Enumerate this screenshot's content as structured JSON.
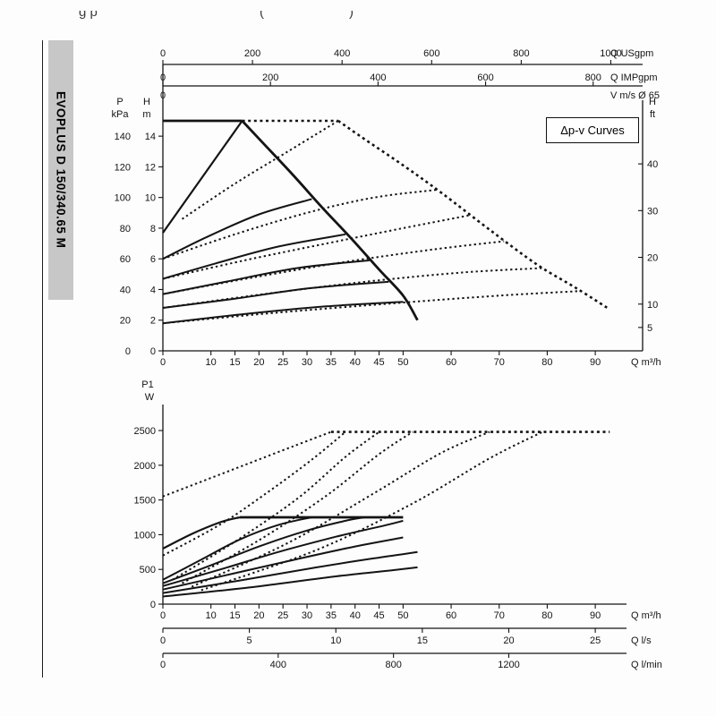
{
  "header_fragments": [
    "g p",
    "(",
    ")"
  ],
  "sidebar_label": "EVOPLUS D 150/340.65 M",
  "dpv_label": "Δp-v Curves",
  "chart_data": [
    {
      "type": "line",
      "name": "head-vs-flow",
      "x_axis": {
        "label": "Q m³/h",
        "ticks": [
          0,
          10,
          15,
          20,
          25,
          30,
          35,
          40,
          45,
          50,
          60,
          70,
          80,
          90
        ],
        "max": 96.5
      },
      "y_axis": {
        "max_m": 15
      },
      "top_axes": [
        {
          "label": "Q USgpm",
          "ticks": [
            0,
            200,
            400,
            600,
            800,
            1000
          ],
          "max": 1035
        },
        {
          "label": "Q IMPgpm",
          "ticks": [
            0,
            200,
            400,
            600,
            800
          ],
          "max": 862
        },
        {
          "label": "V m/s Ø 65",
          "ticks": [
            0
          ],
          "max": 1035
        }
      ],
      "left_axes": [
        {
          "header": [
            "P",
            "kPa"
          ],
          "ticks": [
            140,
            120,
            100,
            80,
            60,
            40,
            20,
            0
          ],
          "m_per_unit": 0.1
        },
        {
          "header": [
            "H",
            "m"
          ],
          "ticks": [
            14,
            12,
            10,
            8,
            6,
            4,
            2,
            0
          ],
          "m_per_unit": 1
        }
      ],
      "right_axis": {
        "header": [
          "H",
          "ft"
        ],
        "ticks": [
          40,
          30,
          20,
          10,
          5
        ],
        "m_per_unit": 0.3048
      },
      "series": [
        {
          "style": "solid",
          "w": 2.8,
          "pts": [
            [
              0,
              15
            ],
            [
              16.5,
              15
            ]
          ]
        },
        {
          "style": "solid",
          "w": 2.8,
          "pts": [
            [
              16.5,
              15
            ],
            [
              21,
              13.5
            ],
            [
              27,
              11.5
            ],
            [
              33,
              9.4
            ],
            [
              39,
              7.4
            ],
            [
              45,
              5.3
            ],
            [
              50,
              3.6
            ],
            [
              53,
              2.0
            ]
          ]
        },
        {
          "style": "solid",
          "w": 2.2,
          "pts": [
            [
              0,
              7.7
            ],
            [
              16.5,
              15
            ]
          ]
        },
        {
          "style": "solid",
          "w": 2,
          "pts": [
            [
              0,
              6.0
            ],
            [
              9,
              7.4
            ],
            [
              20,
              8.9
            ],
            [
              31,
              9.9
            ]
          ]
        },
        {
          "style": "solid",
          "w": 2,
          "pts": [
            [
              0,
              4.7
            ],
            [
              11,
              5.7
            ],
            [
              24,
              6.8
            ],
            [
              38,
              7.6
            ]
          ]
        },
        {
          "style": "solid",
          "w": 2,
          "pts": [
            [
              0,
              3.7
            ],
            [
              13,
              4.5
            ],
            [
              28,
              5.4
            ],
            [
              43,
              5.9
            ]
          ]
        },
        {
          "style": "solid",
          "w": 2,
          "pts": [
            [
              0,
              2.8
            ],
            [
              15,
              3.4
            ],
            [
              31,
              4.1
            ],
            [
              47,
              4.5
            ]
          ]
        },
        {
          "style": "solid",
          "w": 2,
          "pts": [
            [
              0,
              1.8
            ],
            [
              17,
              2.4
            ],
            [
              34,
              2.9
            ],
            [
              50,
              3.2
            ]
          ]
        },
        {
          "style": "dotted",
          "w": 2.6,
          "pts": [
            [
              16.5,
              15
            ],
            [
              36.5,
              15
            ]
          ]
        },
        {
          "style": "dotted",
          "w": 2.6,
          "pts": [
            [
              36.5,
              15
            ],
            [
              42,
              13.8
            ],
            [
              50,
              12.1
            ],
            [
              58,
              10.3
            ],
            [
              68,
              7.9
            ],
            [
              78,
              5.6
            ],
            [
              86,
              4.1
            ],
            [
              93,
              2.7
            ]
          ]
        },
        {
          "style": "dotted",
          "w": 2,
          "pts": [
            [
              4,
              8.6
            ],
            [
              15,
              10.9
            ],
            [
              26,
              13.0
            ],
            [
              36.5,
              15
            ]
          ]
        },
        {
          "style": "dotted",
          "w": 2,
          "pts": [
            [
              0,
              6.0
            ],
            [
              15,
              7.6
            ],
            [
              30,
              9.0
            ],
            [
              44,
              10.0
            ],
            [
              57,
              10.5
            ]
          ]
        },
        {
          "style": "dotted",
          "w": 2,
          "pts": [
            [
              0,
              4.7
            ],
            [
              17,
              5.9
            ],
            [
              34,
              7.0
            ],
            [
              50,
              8.0
            ],
            [
              64,
              8.85
            ]
          ]
        },
        {
          "style": "dotted",
          "w": 2,
          "pts": [
            [
              0,
              3.7
            ],
            [
              19,
              4.8
            ],
            [
              38,
              5.8
            ],
            [
              56,
              6.6
            ],
            [
              71,
              7.15
            ]
          ]
        },
        {
          "style": "dotted",
          "w": 2,
          "pts": [
            [
              0,
              2.8
            ],
            [
              21,
              3.7
            ],
            [
              42,
              4.5
            ],
            [
              62,
              5.1
            ],
            [
              79,
              5.4
            ]
          ]
        },
        {
          "style": "dotted",
          "w": 2,
          "pts": [
            [
              0,
              1.8
            ],
            [
              24,
              2.5
            ],
            [
              48,
              3.1
            ],
            [
              70,
              3.6
            ],
            [
              87,
              3.9
            ]
          ]
        }
      ]
    },
    {
      "type": "line",
      "name": "power-vs-flow",
      "y_axis": {
        "header": [
          "P1",
          "W"
        ],
        "ticks": [
          2500,
          2000,
          1500,
          1000,
          500,
          0
        ],
        "max_w": 2900
      },
      "x_max_m3h": 96.5,
      "bottom_axes": [
        {
          "label": "Q m³/h",
          "ticks": [
            0,
            10,
            15,
            20,
            25,
            30,
            35,
            40,
            45,
            50,
            60,
            70,
            80,
            90
          ],
          "to_m3h": 1
        },
        {
          "label": "Q l/s",
          "ticks": [
            0,
            5,
            10,
            15,
            20,
            25
          ],
          "to_m3h": 3.6
        },
        {
          "label": "Q l/min",
          "ticks": [
            0,
            400,
            800,
            1200
          ],
          "to_m3h": 0.06
        }
      ],
      "series": [
        {
          "style": "solid",
          "w": 2.8,
          "pts": [
            [
              16,
              1250
            ],
            [
              50,
              1250
            ]
          ]
        },
        {
          "style": "solid",
          "w": 2.2,
          "pts": [
            [
              0,
              800
            ],
            [
              6,
              1010
            ],
            [
              12,
              1180
            ],
            [
              16,
              1250
            ]
          ]
        },
        {
          "style": "solid",
          "w": 2,
          "pts": [
            [
              0,
              350
            ],
            [
              8,
              640
            ],
            [
              16,
              930
            ],
            [
              24,
              1140
            ],
            [
              31,
              1250
            ]
          ]
        },
        {
          "style": "solid",
          "w": 2,
          "pts": [
            [
              0,
              300
            ],
            [
              10,
              560
            ],
            [
              20,
              830
            ],
            [
              30,
              1060
            ],
            [
              38,
              1200
            ],
            [
              42,
              1250
            ]
          ]
        },
        {
          "style": "solid",
          "w": 2,
          "pts": [
            [
              0,
              260
            ],
            [
              12,
              500
            ],
            [
              24,
              750
            ],
            [
              36,
              970
            ],
            [
              46,
              1130
            ],
            [
              50,
              1200
            ]
          ]
        },
        {
          "style": "solid",
          "w": 2,
          "pts": [
            [
              0,
              210
            ],
            [
              14,
              430
            ],
            [
              28,
              650
            ],
            [
              40,
              830
            ],
            [
              50,
              960
            ]
          ]
        },
        {
          "style": "solid",
          "w": 2,
          "pts": [
            [
              0,
              160
            ],
            [
              16,
              340
            ],
            [
              32,
              530
            ],
            [
              44,
              660
            ],
            [
              53,
              750
            ]
          ]
        },
        {
          "style": "solid",
          "w": 2,
          "pts": [
            [
              0,
              110
            ],
            [
              18,
              240
            ],
            [
              36,
              400
            ],
            [
              48,
              490
            ],
            [
              53,
              530
            ]
          ]
        },
        {
          "style": "dotted",
          "w": 2.6,
          "pts": [
            [
              35,
              2480
            ],
            [
              93,
              2480
            ]
          ]
        },
        {
          "style": "dotted",
          "w": 2,
          "pts": [
            [
              0,
              1550
            ],
            [
              9,
              1790
            ],
            [
              18,
              2030
            ],
            [
              27,
              2270
            ],
            [
              35,
              2480
            ]
          ]
        },
        {
          "style": "dotted",
          "w": 2,
          "pts": [
            [
              0,
              700
            ],
            [
              12,
              1150
            ],
            [
              22,
              1620
            ],
            [
              31,
              2080
            ],
            [
              38,
              2480
            ]
          ]
        },
        {
          "style": "dotted",
          "w": 2,
          "pts": [
            [
              2,
              350
            ],
            [
              15,
              900
            ],
            [
              28,
              1520
            ],
            [
              38,
              2120
            ],
            [
              45,
              2480
            ]
          ]
        },
        {
          "style": "dotted",
          "w": 2,
          "pts": [
            [
              4,
              300
            ],
            [
              20,
              920
            ],
            [
              34,
              1560
            ],
            [
              45,
              2160
            ],
            [
              52,
              2480
            ]
          ]
        },
        {
          "style": "dotted",
          "w": 2,
          "pts": [
            [
              6,
              250
            ],
            [
              26,
              880
            ],
            [
              44,
              1600
            ],
            [
              58,
              2180
            ],
            [
              68,
              2480
            ]
          ]
        },
        {
          "style": "dotted",
          "w": 2,
          "pts": [
            [
              8,
              200
            ],
            [
              32,
              780
            ],
            [
              52,
              1450
            ],
            [
              68,
              2100
            ],
            [
              79,
              2480
            ]
          ]
        }
      ]
    }
  ]
}
